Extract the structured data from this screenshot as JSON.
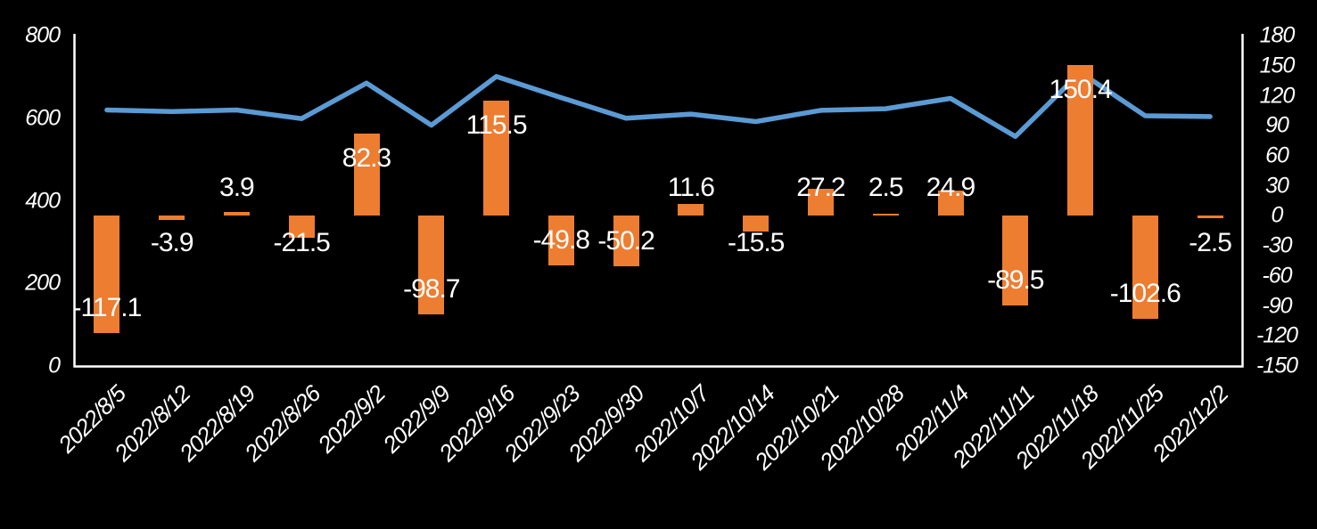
{
  "chart_data": {
    "type": "combo",
    "title": "",
    "legend": "none",
    "grid": "off",
    "background": "#000000",
    "text_color": "#FFFFFF",
    "axis_line_color": "#FFFFFF",
    "categories": [
      "2022/8/5",
      "2022/8/12",
      "2022/8/19",
      "2022/8/26",
      "2022/9/2",
      "2022/9/9",
      "2022/9/16",
      "2022/9/23",
      "2022/9/30",
      "2022/10/7",
      "2022/10/14",
      "2022/10/21",
      "2022/10/28",
      "2022/11/4",
      "2022/11/11",
      "2022/11/18",
      "2022/11/25",
      "2022/12/2"
    ],
    "series": [
      {
        "id": "bar-series",
        "type": "bar",
        "axis": "right",
        "color": "#ED7D31",
        "values": [
          -117.1,
          -3.9,
          3.9,
          -21.5,
          82.3,
          -98.7,
          115.5,
          -49.8,
          -50.2,
          11.6,
          -15.5,
          27.2,
          2.5,
          24.9,
          -89.5,
          150.4,
          -102.6,
          -2.5
        ],
        "labels": [
          "-117.1",
          "-3.9",
          "3.9",
          "-21.5",
          "82.3",
          "-98.7",
          "115.5",
          "-49.8",
          "-50.2",
          "11.6",
          "-15.5",
          "27.2",
          "2.5",
          "24.9",
          "-89.5",
          "150.4",
          "-102.6",
          "-2.5"
        ]
      },
      {
        "id": "line-series",
        "type": "line",
        "axis": "left",
        "color": "#5B9BD5",
        "values": [
          620,
          616,
          620,
          599,
          685,
          583,
          701,
          650,
          600,
          610,
          592,
          619,
          623,
          648,
          556,
          711,
          606,
          604
        ]
      }
    ],
    "axes": {
      "left": {
        "min": 0,
        "max": 800,
        "ticks": [
          "800",
          "600",
          "400",
          "200",
          "0"
        ]
      },
      "right": {
        "min": -150,
        "max": 180,
        "ticks": [
          "180",
          "150",
          "120",
          "90",
          "60",
          "30",
          "0",
          "-30",
          "-60",
          "-90",
          "-120",
          "-150"
        ]
      }
    }
  }
}
